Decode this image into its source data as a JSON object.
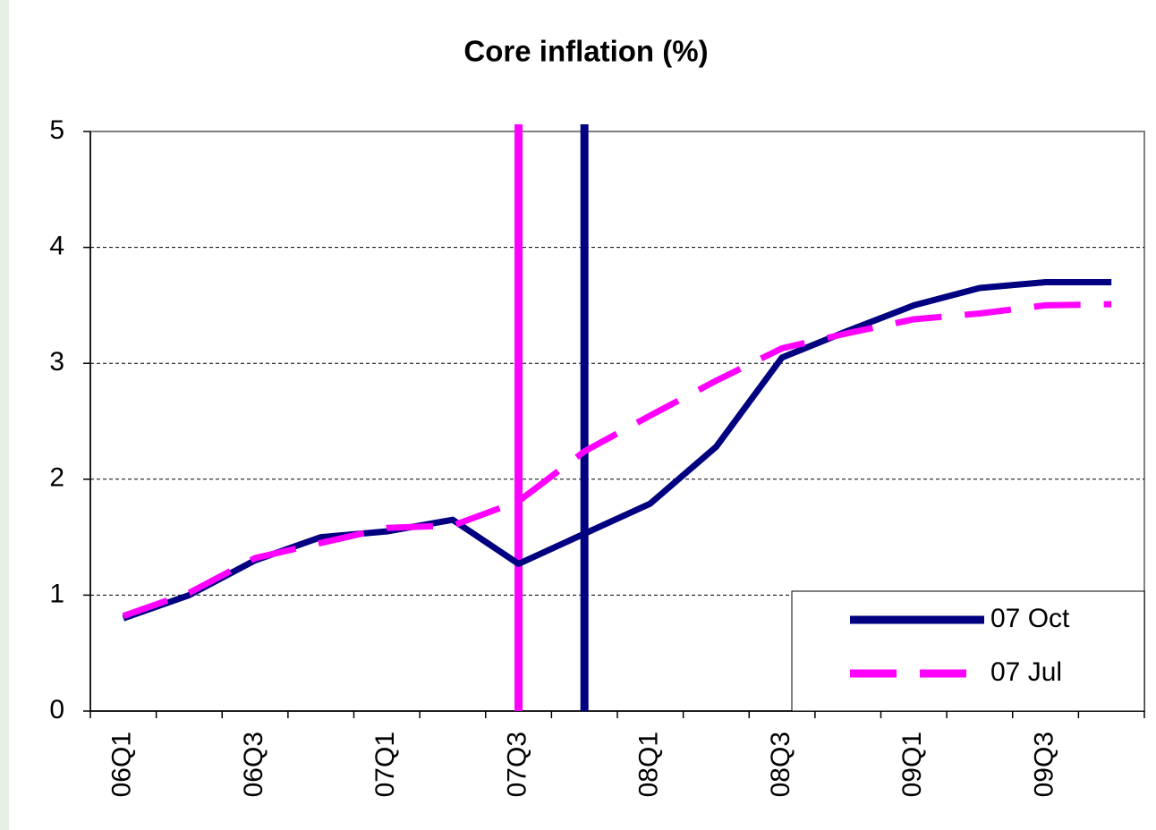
{
  "chart_data": {
    "type": "line",
    "title": "Core inflation (%)",
    "categories": [
      "06Q1",
      null,
      "06Q3",
      null,
      "07Q1",
      null,
      "07Q3",
      null,
      "08Q1",
      null,
      "08Q3",
      null,
      "09Q1",
      null,
      "09Q3",
      null
    ],
    "series": [
      {
        "name": "07 Oct",
        "color": "#000080",
        "dash": false,
        "values": [
          0.8,
          1.0,
          1.3,
          1.5,
          1.55,
          1.65,
          1.27,
          1.53,
          1.79,
          2.28,
          3.05,
          3.28,
          3.5,
          3.65,
          3.7,
          3.7
        ]
      },
      {
        "name": "07 Jul",
        "color": "#ff00ff",
        "dash": true,
        "values": [
          0.82,
          1.02,
          1.32,
          1.45,
          1.58,
          1.6,
          1.81,
          2.24,
          2.55,
          2.85,
          3.13,
          3.26,
          3.38,
          3.43,
          3.5,
          3.51
        ]
      }
    ],
    "vlines": [
      {
        "at": 6,
        "color": "#ff00ff"
      },
      {
        "at": 7,
        "color": "#000080"
      }
    ],
    "ylim": [
      0,
      5
    ],
    "yticks": [
      0,
      1,
      2,
      3,
      4,
      5
    ],
    "grid": true,
    "legend": "bottom-right"
  }
}
